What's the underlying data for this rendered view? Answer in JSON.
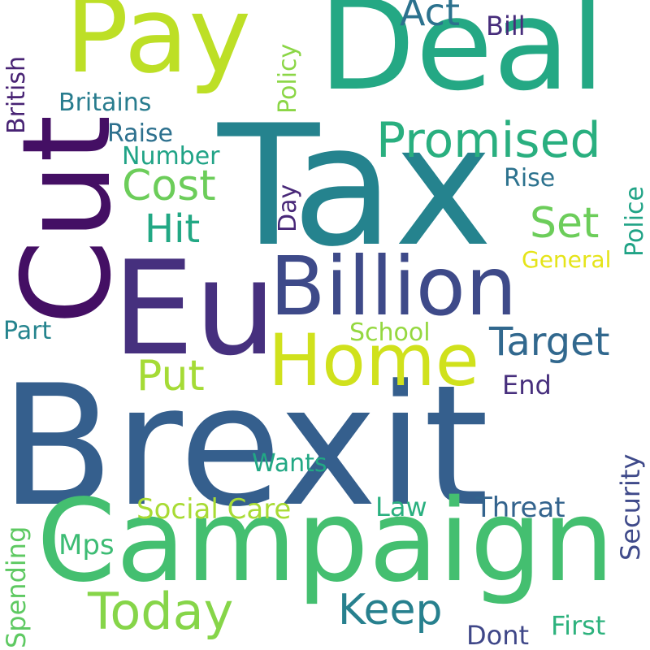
{
  "wordcloud": {
    "words": {
      "brexit": "Brexit",
      "tax": "Tax",
      "campaign": "Campaign",
      "eu": "Eu",
      "cut": "Cut",
      "deal": "Deal",
      "pay": "Pay",
      "billion": "Billion",
      "home": "Home",
      "promised": "Promised",
      "today": "Today",
      "keep": "Keep",
      "target": "Target",
      "cost": "Cost",
      "put": "Put",
      "set": "Set",
      "hit": "Hit",
      "act": "Act",
      "britains": "Britains",
      "raise": "Raise",
      "number": "Number",
      "rise": "Rise",
      "bill": "Bill",
      "general": "General",
      "part": "Part",
      "school": "School",
      "end": "End",
      "wants": "Wants",
      "social_care": "Social Care",
      "law": "Law",
      "threat": "Threat",
      "mps": "Mps",
      "dont": "Dont",
      "first": "First",
      "british": "British",
      "policy": "Policy",
      "day": "Day",
      "police": "Police",
      "security": "Security",
      "spending": "Spending"
    }
  }
}
